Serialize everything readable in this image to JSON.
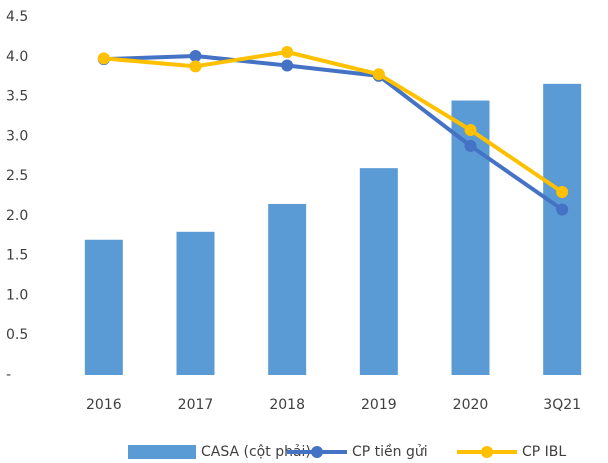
{
  "chart_data": {
    "type": "bar",
    "categories": [
      "2016",
      "2017",
      "2018",
      "2019",
      "2020",
      "3Q21"
    ],
    "series": [
      {
        "name": "CASA (cột phải)",
        "type": "bar",
        "color": "#5b9bd5",
        "values": [
          1.7,
          1.8,
          2.15,
          2.6,
          3.45,
          3.66
        ]
      },
      {
        "name": "CP tiền gửi",
        "type": "line",
        "color": "#4472c4",
        "values": [
          3.97,
          4.01,
          3.89,
          3.76,
          2.88,
          2.08
        ]
      },
      {
        "name": "CP IBL",
        "type": "line",
        "color": "#ffc000",
        "values": [
          3.98,
          3.88,
          4.06,
          3.78,
          3.08,
          2.3
        ]
      }
    ],
    "ylim": [
      0,
      4.5
    ],
    "yticks": [
      {
        "value": 0,
        "label": "-"
      },
      0.5,
      {
        "value": 1,
        "label": "1.0"
      },
      1.5,
      {
        "value": 2,
        "label": "2.0"
      },
      2.5,
      {
        "value": 3,
        "label": "3.0"
      },
      3.5,
      {
        "value": 4,
        "label": "4.0"
      },
      4.5
    ],
    "grid": false,
    "legend": "bottom"
  }
}
